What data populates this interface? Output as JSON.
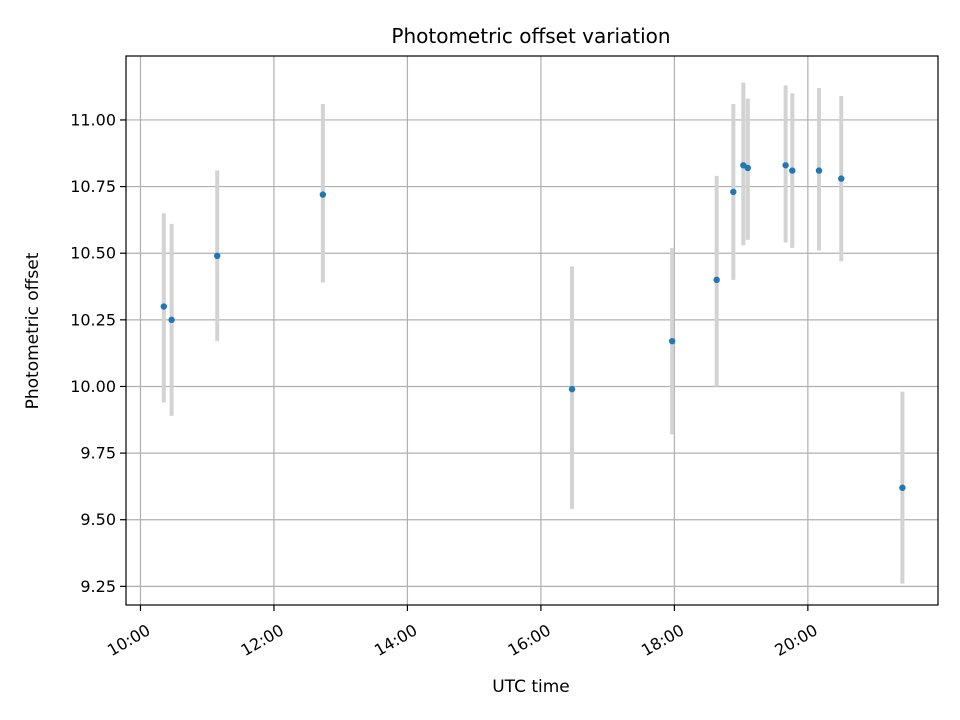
{
  "chart_data": {
    "type": "scatter",
    "title": "Photometric offset variation",
    "xlabel": "UTC time",
    "ylabel": "Photometric offset",
    "x_type": "time",
    "xlim": [
      "09:47",
      "21:57"
    ],
    "ylim": [
      9.18,
      11.24
    ],
    "x_ticks": [
      "10:00",
      "12:00",
      "14:00",
      "16:00",
      "18:00",
      "20:00"
    ],
    "y_ticks": [
      "9.25",
      "9.50",
      "9.75",
      "10.00",
      "10.25",
      "10.50",
      "10.75",
      "11.00"
    ],
    "grid": true,
    "legend": "none",
    "error_bars": true,
    "series": [
      {
        "points": [
          {
            "x": "10:21",
            "y": 10.3,
            "err_low": 9.94,
            "err_high": 10.65
          },
          {
            "x": "10:28",
            "y": 10.25,
            "err_low": 9.89,
            "err_high": 10.61
          },
          {
            "x": "11:09",
            "y": 10.49,
            "err_low": 10.17,
            "err_high": 10.81
          },
          {
            "x": "12:44",
            "y": 10.72,
            "err_low": 10.39,
            "err_high": 11.06
          },
          {
            "x": "16:28",
            "y": 9.99,
            "err_low": 9.54,
            "err_high": 10.45
          },
          {
            "x": "17:58",
            "y": 10.17,
            "err_low": 9.82,
            "err_high": 10.52
          },
          {
            "x": "18:38",
            "y": 10.4,
            "err_low": 10.0,
            "err_high": 10.79
          },
          {
            "x": "18:53",
            "y": 10.73,
            "err_low": 10.4,
            "err_high": 11.06
          },
          {
            "x": "19:02",
            "y": 10.83,
            "err_low": 10.53,
            "err_high": 11.14
          },
          {
            "x": "19:06",
            "y": 10.82,
            "err_low": 10.55,
            "err_high": 11.08
          },
          {
            "x": "19:40",
            "y": 10.83,
            "err_low": 10.54,
            "err_high": 11.13
          },
          {
            "x": "19:46",
            "y": 10.81,
            "err_low": 10.52,
            "err_high": 11.1
          },
          {
            "x": "20:10",
            "y": 10.81,
            "err_low": 10.51,
            "err_high": 11.12
          },
          {
            "x": "20:30",
            "y": 10.78,
            "err_low": 10.47,
            "err_high": 11.09
          },
          {
            "x": "21:25",
            "y": 9.62,
            "err_low": 9.26,
            "err_high": 9.98
          }
        ]
      }
    ],
    "colors": {
      "point": "#1f77b4",
      "error_bar": "#d3d3d3",
      "grid": "#b0b0b0",
      "axis": "#000000"
    }
  }
}
